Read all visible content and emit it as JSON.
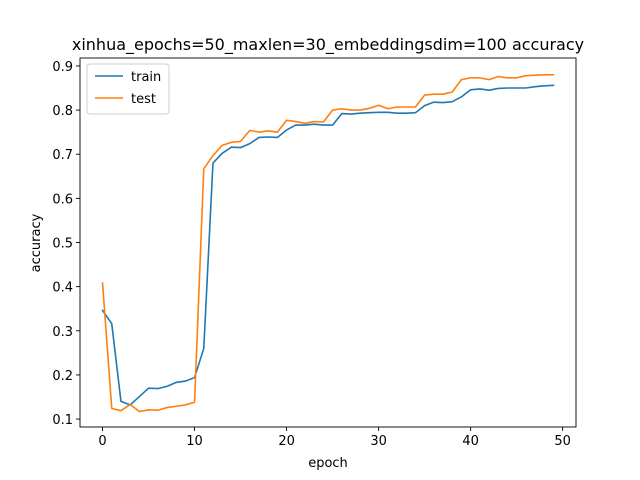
{
  "chart_data": {
    "type": "line",
    "title": "xinhua_epochs=50_maxlen=30_embeddingsdim=100 accuracy",
    "xlabel": "epoch",
    "ylabel": "accuracy",
    "xlim": [
      -2.45,
      51.45
    ],
    "ylim": [
      0.082,
      0.918
    ],
    "xticks": [
      0,
      10,
      20,
      30,
      40,
      50
    ],
    "yticks": [
      0.1,
      0.2,
      0.3,
      0.4,
      0.5,
      0.6,
      0.7,
      0.8,
      0.9
    ],
    "legend_position": "upper-left",
    "grid": false,
    "x": [
      0,
      1,
      2,
      3,
      4,
      5,
      6,
      7,
      8,
      9,
      10,
      11,
      12,
      13,
      14,
      15,
      16,
      17,
      18,
      19,
      20,
      21,
      22,
      23,
      24,
      25,
      26,
      27,
      28,
      29,
      30,
      31,
      32,
      33,
      34,
      35,
      36,
      37,
      38,
      39,
      40,
      41,
      42,
      43,
      44,
      45,
      46,
      47,
      48,
      49
    ],
    "series": [
      {
        "name": "train",
        "color": "#1f77b4",
        "values": [
          0.346,
          0.316,
          0.14,
          0.132,
          0.151,
          0.17,
          0.169,
          0.174,
          0.183,
          0.186,
          0.194,
          0.26,
          0.68,
          0.702,
          0.716,
          0.715,
          0.724,
          0.738,
          0.739,
          0.738,
          0.755,
          0.766,
          0.766,
          0.768,
          0.766,
          0.766,
          0.792,
          0.791,
          0.793,
          0.794,
          0.795,
          0.795,
          0.793,
          0.793,
          0.794,
          0.81,
          0.818,
          0.817,
          0.819,
          0.83,
          0.846,
          0.848,
          0.845,
          0.849,
          0.85,
          0.85,
          0.85,
          0.853,
          0.855,
          0.856
        ]
      },
      {
        "name": "test",
        "color": "#ff7f0e",
        "values": [
          0.408,
          0.124,
          0.119,
          0.133,
          0.117,
          0.121,
          0.12,
          0.126,
          0.129,
          0.132,
          0.138,
          0.667,
          0.697,
          0.72,
          0.727,
          0.729,
          0.754,
          0.75,
          0.753,
          0.75,
          0.777,
          0.774,
          0.77,
          0.774,
          0.773,
          0.8,
          0.803,
          0.8,
          0.8,
          0.804,
          0.811,
          0.803,
          0.807,
          0.807,
          0.807,
          0.834,
          0.836,
          0.836,
          0.841,
          0.869,
          0.873,
          0.873,
          0.869,
          0.876,
          0.873,
          0.873,
          0.878,
          0.879,
          0.88,
          0.88
        ]
      }
    ]
  }
}
